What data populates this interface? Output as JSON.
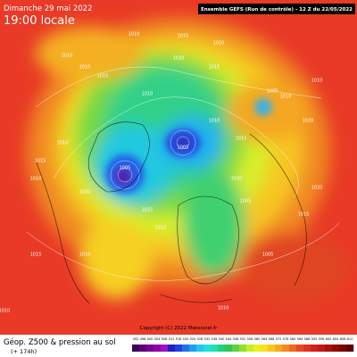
{
  "header": {
    "date": "Dimanche 29 mai 2022",
    "time": "19:00 locale",
    "run": "Ensemble GEFS  (Run de contrôle)  - 12 Z du 22/05/2022"
  },
  "footer": {
    "title": "Géop. Z500 & pression au sol",
    "lead": "(+ 174h)"
  },
  "copyright": "Copyright (C) 2022 Meteociel.fr",
  "pressure_labels": [
    "1010",
    "1015",
    "1020",
    "1010",
    "1010",
    "1015",
    "1020",
    "1015",
    "1005",
    "1010",
    "1010",
    "1005",
    "1010",
    "1015",
    "1010",
    "1005",
    "1010",
    "1015",
    "1010",
    "1020",
    "1015",
    "1010",
    "1005",
    "1020",
    "1015",
    "1010",
    "1020",
    "1015",
    "1005",
    "1010",
    "1020",
    "1010"
  ],
  "scale": {
    "labels": [
      "492",
      "496",
      "500",
      "504",
      "508",
      "512",
      "516",
      "520",
      "524",
      "528",
      "532",
      "536",
      "540",
      "544",
      "548",
      "552",
      "556",
      "560",
      "564",
      "568",
      "572",
      "576",
      "580",
      "584",
      "588",
      "592",
      "596",
      "600",
      "604",
      "608",
      "612"
    ],
    "colors": [
      "#3a005a",
      "#5a007a",
      "#7a0090",
      "#9000a8",
      "#a010c0",
      "#2020c0",
      "#2040e0",
      "#2070f0",
      "#20a0f0",
      "#20c8f0",
      "#20e0e0",
      "#20e0b0",
      "#20d080",
      "#30c850",
      "#60d040",
      "#90e030",
      "#c0f020",
      "#e8f020",
      "#f8e020",
      "#f8c820",
      "#f8a820",
      "#f88820",
      "#f06820",
      "#e84820",
      "#e03020",
      "#d02020",
      "#c01818",
      "#a81010",
      "#900808",
      "#780404",
      "#600000"
    ]
  }
}
